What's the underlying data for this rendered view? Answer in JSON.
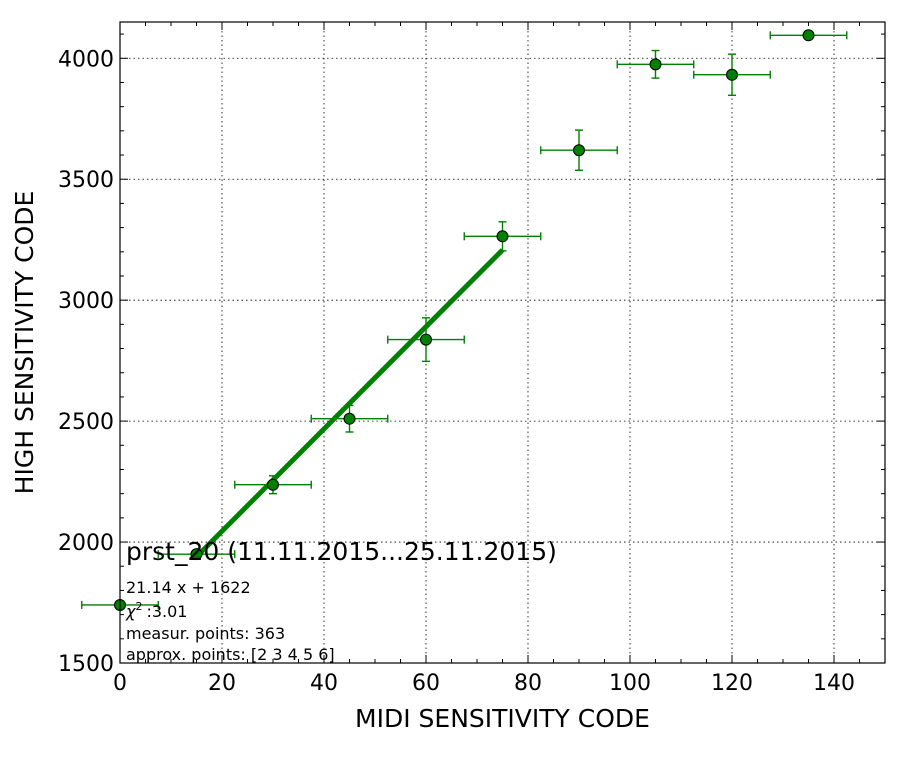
{
  "chart_data": {
    "type": "scatter",
    "xlabel": "MIDI SENSITIVITY CODE",
    "ylabel": "HIGH SENSITIVITY CODE",
    "xlim": [
      0,
      150
    ],
    "ylim": [
      1500,
      4150
    ],
    "x_ticks": [
      0,
      20,
      40,
      60,
      80,
      100,
      120,
      140
    ],
    "y_ticks": [
      1500,
      2000,
      2500,
      3000,
      3500,
      4000
    ],
    "x_tick_labels": [
      "0",
      "20",
      "40",
      "60",
      "80",
      "100",
      "120",
      "140"
    ],
    "y_tick_labels": [
      "1500",
      "2000",
      "2500",
      "3000",
      "3500",
      "4000"
    ],
    "x_minor_step": 5,
    "y_minor_step": 100,
    "grid": true,
    "color": "#008000",
    "points": [
      {
        "x": 0,
        "y": 1740,
        "xerr": 7.5,
        "yerr": 0
      },
      {
        "x": 15,
        "y": 1950,
        "xerr": 7.5,
        "yerr": 0
      },
      {
        "x": 30,
        "y": 2237,
        "xerr": 7.5,
        "yerr": 37
      },
      {
        "x": 45,
        "y": 2510,
        "xerr": 7.5,
        "yerr": 55
      },
      {
        "x": 60,
        "y": 2837,
        "xerr": 7.5,
        "yerr": 90
      },
      {
        "x": 75,
        "y": 3264,
        "xerr": 7.5,
        "yerr": 60
      },
      {
        "x": 90,
        "y": 3620,
        "xerr": 7.5,
        "yerr": 83
      },
      {
        "x": 105,
        "y": 3975,
        "xerr": 7.5,
        "yerr": 57
      },
      {
        "x": 120,
        "y": 3932,
        "xerr": 7.5,
        "yerr": 85
      },
      {
        "x": 135,
        "y": 4095,
        "xerr": 7.5,
        "yerr": 0
      }
    ],
    "fit": {
      "slope": 21.14,
      "intercept": 1622,
      "x_range": [
        15,
        75
      ]
    },
    "annotations": {
      "title": "prst_20 (11.11.2015...25.11.2015)",
      "equation": "21.14 x + 1622",
      "chi_symbol": "χ",
      "chi_sup": "2",
      "chi_value": ":3.01",
      "measur_points": "measur. points: 363",
      "approx_points": "approx. points: [2 3 4 5 6]"
    }
  }
}
